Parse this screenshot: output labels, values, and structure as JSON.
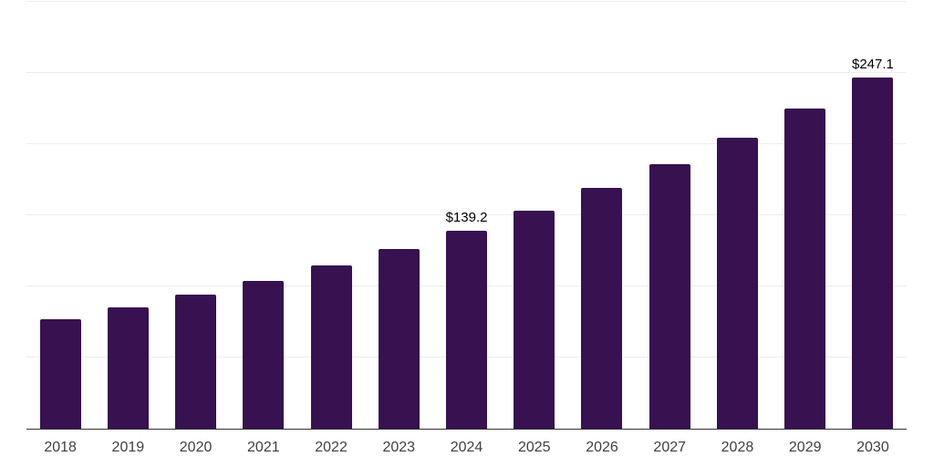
{
  "chart_data": {
    "type": "bar",
    "title": "",
    "xlabel": "",
    "ylabel": "",
    "categories": [
      "2018",
      "2019",
      "2020",
      "2021",
      "2022",
      "2023",
      "2024",
      "2025",
      "2026",
      "2027",
      "2028",
      "2029",
      "2030"
    ],
    "values": [
      76.7,
      85.2,
      94.0,
      104.0,
      114.8,
      126.2,
      139.2,
      153.2,
      169.0,
      186.2,
      204.7,
      225.1,
      247.1
    ],
    "data_labels": [
      "",
      "",
      "",
      "",
      "",
      "",
      "$139.2",
      "",
      "",
      "",
      "",
      "",
      "$247.1"
    ],
    "ylim": [
      0,
      300
    ],
    "gridline_step": 50,
    "grid": true,
    "legend_position": "none",
    "y_axis_labels_visible": false,
    "bar_color": "#371150",
    "axis_color": "#333333",
    "gridline_color": "#ededed",
    "value_label_color": "#000000",
    "tick_label_color": "#404040"
  }
}
